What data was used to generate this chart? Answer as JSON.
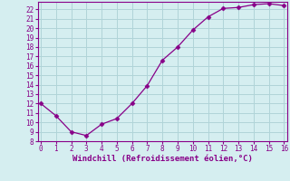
{
  "x": [
    0,
    1,
    2,
    3,
    4,
    5,
    6,
    7,
    8,
    9,
    10,
    11,
    12,
    13,
    14,
    15,
    16
  ],
  "y": [
    12,
    10.7,
    9.0,
    8.6,
    9.8,
    10.4,
    12.0,
    13.9,
    16.6,
    18.0,
    19.8,
    21.2,
    22.1,
    22.2,
    22.5,
    22.6,
    22.4
  ],
  "line_color": "#880088",
  "marker": "D",
  "marker_size": 2.5,
  "bg_color": "#d5eef0",
  "grid_color": "#b0d4d8",
  "xlabel": "Windchill (Refroidissement éolien,°C)",
  "xlabel_color": "#880088",
  "tick_color": "#880088",
  "spine_color": "#880088",
  "ylim": [
    8,
    22.8
  ],
  "xlim": [
    -0.2,
    16.2
  ],
  "yticks": [
    8,
    9,
    10,
    11,
    12,
    13,
    14,
    15,
    16,
    17,
    18,
    19,
    20,
    21,
    22
  ],
  "xticks": [
    0,
    1,
    2,
    3,
    4,
    5,
    6,
    7,
    8,
    9,
    10,
    11,
    12,
    13,
    14,
    15,
    16
  ],
  "tick_fontsize": 5.5,
  "xlabel_fontsize": 6.5
}
